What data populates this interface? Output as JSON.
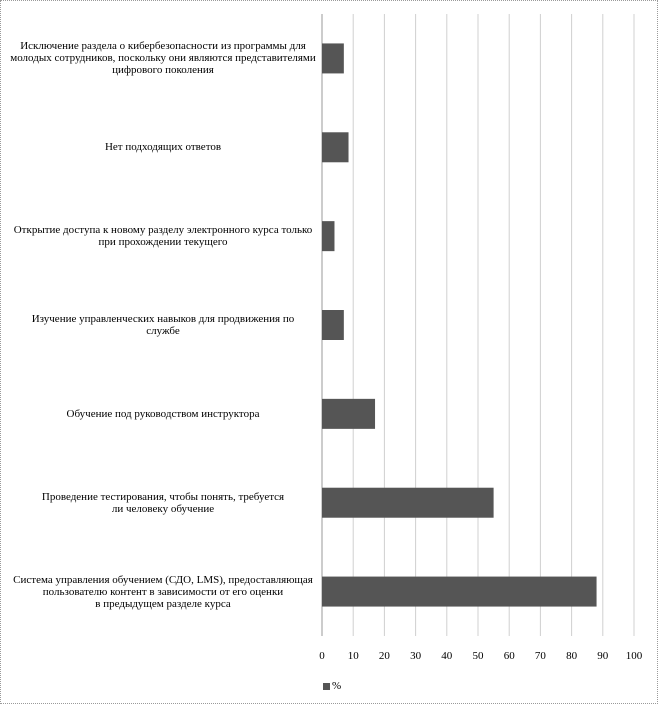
{
  "chart_data": {
    "type": "bar",
    "orientation": "horizontal",
    "categories": [
      "Исключение раздела о кибербезопасности из программы для\nмолодых сотрудников, поскольку они являются представителями\nцифрового поколения",
      "Нет подходящих ответов",
      "Открытие доступа к новому разделу электронного курса только\nпри прохождении текущего",
      "Изучение управленческих навыков для продвижения по\nслужбе",
      "Обучение под руководством инструктора",
      "Проведение тестирования, чтобы понять, требуется\nли человеку обучение",
      "Система управления обучением (СДО, LMS), предоставляющая\nпользователю контент в зависимости от его оценки\nв предыдущем разделе курса"
    ],
    "series": [
      {
        "name": "%",
        "values": [
          7,
          8.5,
          4,
          7,
          17,
          55,
          88
        ]
      }
    ],
    "xlim": [
      0,
      100
    ],
    "xticks": [
      "0",
      "10",
      "20",
      "30",
      "40",
      "50",
      "60",
      "70",
      "80",
      "90",
      "100"
    ],
    "grid": "vertical",
    "legend": "bottom",
    "colors": {
      "bar": "#555555",
      "grid": "#d0d0d0",
      "axis": "#9a9a9a"
    }
  }
}
